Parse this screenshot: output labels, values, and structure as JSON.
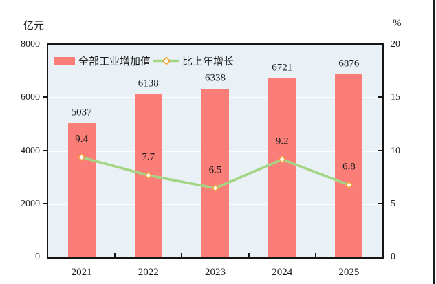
{
  "page": {
    "left_unit_label": "亿元",
    "right_unit_label": "%"
  },
  "chart_data": {
    "type": "bar",
    "subtype": "bar+line dual axis",
    "categories": [
      "2021",
      "2022",
      "2023",
      "2024",
      "2025"
    ],
    "series": [
      {
        "name": "全部工业增加值",
        "type": "bar",
        "axis": "left",
        "values": [
          5037,
          6138,
          6338,
          6721,
          6876
        ],
        "color": "#fb7d77"
      },
      {
        "name": "比上年增长",
        "type": "line",
        "axis": "right",
        "values": [
          9.4,
          7.7,
          6.5,
          9.2,
          6.8
        ],
        "color": "#a3d585",
        "marker": "diamond",
        "marker_stroke": "#f2a43c",
        "marker_fill": "#ffffff"
      }
    ],
    "left_axis": {
      "label": "亿元",
      "min": 0,
      "max": 8000,
      "ticks": [
        0,
        2000,
        4000,
        6000,
        8000
      ]
    },
    "right_axis": {
      "label": "%",
      "min": 0,
      "max": 20,
      "ticks": [
        0,
        5,
        10,
        15,
        20
      ]
    },
    "grid": true,
    "plot_background": "#e9f1f6",
    "gridline_color": "#ffffff",
    "legend_position": "top-left-inside"
  }
}
